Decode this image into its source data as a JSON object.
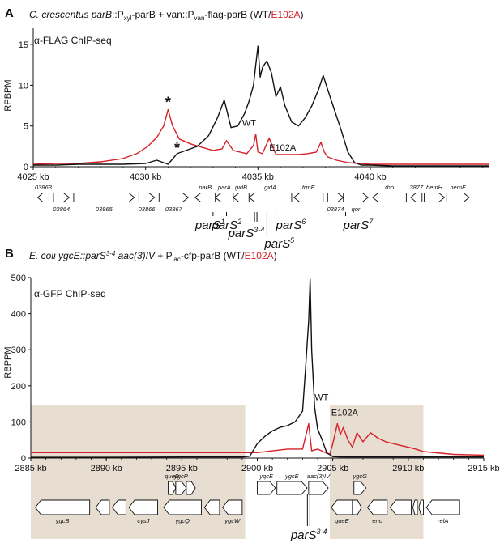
{
  "panel_labels": [
    "A",
    "B"
  ],
  "panelA": {
    "title_italic": "C. crescentus parB",
    "title_parts": [
      "::P",
      "xyl",
      "-parB + van::P",
      "van",
      "-flag-parB (WT/",
      "E102A",
      ")"
    ],
    "antibody": "α-FLAG ChIP-seq",
    "ylabel": "RPBPM",
    "yticks": [
      "0",
      "5",
      "10",
      "15"
    ],
    "xticks": [
      "4025 kb",
      "4030 kb",
      "4035 kb",
      "4040 kb"
    ],
    "series_labels": {
      "wt": "WT",
      "mut": "E102A"
    },
    "star": "*",
    "genes": [
      {
        "name": "03863",
        "start": 4025.2,
        "end": 4025.7,
        "strand": "-",
        "label": "top"
      },
      {
        "name": "03864",
        "start": 4025.9,
        "end": 4026.6,
        "strand": "+",
        "label": "bottom"
      },
      {
        "name": "03865",
        "start": 4026.8,
        "end": 4029.5,
        "strand": "+",
        "label": "bottom"
      },
      {
        "name": "03866",
        "start": 4029.7,
        "end": 4030.4,
        "strand": "+",
        "label": "bottom"
      },
      {
        "name": "03867",
        "start": 4030.6,
        "end": 4031.9,
        "strand": "+",
        "label": "bottom"
      },
      {
        "name": "parB",
        "start": 4032.2,
        "end": 4033.1,
        "strand": "-",
        "label": "top"
      },
      {
        "name": "parA",
        "start": 4033.1,
        "end": 4033.9,
        "strand": "-",
        "label": "top"
      },
      {
        "name": "gidB",
        "start": 4033.9,
        "end": 4034.6,
        "strand": "-",
        "label": "top"
      },
      {
        "name": "gidA",
        "start": 4034.6,
        "end": 4036.5,
        "strand": "-",
        "label": "top"
      },
      {
        "name": "trmE",
        "start": 4036.6,
        "end": 4037.9,
        "strand": "-",
        "label": "top"
      },
      {
        "name": "03874",
        "start": 4038.1,
        "end": 4038.8,
        "strand": "+",
        "label": "bottom"
      },
      {
        "name": "qor",
        "start": 4038.8,
        "end": 4039.9,
        "strand": "+",
        "label": "bottom"
      },
      {
        "name": "rho",
        "start": 4040.1,
        "end": 4041.6,
        "strand": "-",
        "label": "top"
      },
      {
        "name": "3877",
        "start": 4041.8,
        "end": 4042.3,
        "strand": "-",
        "label": "top"
      },
      {
        "name": "hemH",
        "start": 4042.4,
        "end": 4043.3,
        "strand": "+",
        "label": "top"
      },
      {
        "name": "hemE",
        "start": 4043.4,
        "end": 4044.4,
        "strand": "+",
        "label": "top"
      }
    ],
    "sites": [
      {
        "name": "parS",
        "sup": "1",
        "pos": 4033.0
      },
      {
        "name": "parS",
        "sup": "2",
        "pos": 4033.6
      },
      {
        "name": "parS",
        "sup": "3-4",
        "pos": 4034.9
      },
      {
        "name": "parS",
        "sup": "5",
        "pos": 4035.4
      },
      {
        "name": "parS",
        "sup": "6",
        "pos": 4035.8
      },
      {
        "name": "parS",
        "sup": "7",
        "pos": 4038.9
      }
    ]
  },
  "panelB": {
    "title_italic": "E. coli ygcE::parS",
    "title_parts": [
      "3-4",
      " aac(3)IV",
      " + P",
      "lac",
      "-cfp-parB (WT/",
      "E102A",
      ")"
    ],
    "antibody": "α-GFP ChIP-seq",
    "ylabel": "RBPPM",
    "yticks": [
      "0",
      "100",
      "200",
      "300",
      "400",
      "500"
    ],
    "xticks": [
      "2885 kb",
      "2890 kb",
      "2895 kb",
      "2900 kb",
      "2905 kb",
      "2910 kb",
      "2915 kb"
    ],
    "series_labels": {
      "wt": "WT",
      "mut": "E102A"
    },
    "shaded_regions": [
      [
        2885,
        2899.2
      ],
      [
        2904.8,
        2911
      ]
    ],
    "genes": [
      {
        "name": "ygcB",
        "start": 2885.3,
        "end": 2888.9,
        "strand": "-",
        "row": 2
      },
      {
        "name": "",
        "start": 2889.3,
        "end": 2890.2,
        "strand": "-",
        "row": 2
      },
      {
        "name": "",
        "start": 2890.4,
        "end": 2891.3,
        "strand": "-",
        "row": 2
      },
      {
        "name": "cysJ",
        "start": 2891.5,
        "end": 2893.4,
        "strand": "-",
        "row": 2
      },
      {
        "name": "queD",
        "start": 2894.1,
        "end": 2894.6,
        "strand": "+",
        "row": 1
      },
      {
        "name": "ygcP",
        "start": 2894.6,
        "end": 2895.3,
        "strand": "+",
        "row": 1
      },
      {
        "name": "",
        "start": 2895.3,
        "end": 2895.9,
        "strand": "+",
        "row": 1
      },
      {
        "name": "ygcQ",
        "start": 2893.8,
        "end": 2896.3,
        "strand": "-",
        "row": 2
      },
      {
        "name": "",
        "start": 2896.5,
        "end": 2897.5,
        "strand": "-",
        "row": 2
      },
      {
        "name": "ygcW",
        "start": 2897.7,
        "end": 2899.0,
        "strand": "-",
        "row": 2
      },
      {
        "name": "yqcE",
        "start": 2900.0,
        "end": 2901.2,
        "strand": "+",
        "row": 1
      },
      {
        "name": "ygcE",
        "start": 2901.3,
        "end": 2903.3,
        "strand": "+",
        "row": 1
      },
      {
        "name": "aac(3)IV",
        "start": 2903.4,
        "end": 2904.7,
        "strand": "+",
        "row": 1
      },
      {
        "name": "ygcG",
        "start": 2906.4,
        "end": 2907.2,
        "strand": "+",
        "row": 1
      },
      {
        "name": "queE",
        "start": 2904.9,
        "end": 2906.3,
        "strand": "-",
        "row": 2
      },
      {
        "name": "",
        "start": 2906.3,
        "end": 2906.9,
        "strand": "+",
        "row": 2
      },
      {
        "name": "eno",
        "start": 2907.3,
        "end": 2908.6,
        "strand": "-",
        "row": 2
      },
      {
        "name": "",
        "start": 2908.8,
        "end": 2910.2,
        "strand": "-",
        "row": 2
      },
      {
        "name": "",
        "start": 2910.3,
        "end": 2910.6,
        "strand": "-",
        "row": 2
      },
      {
        "name": "",
        "start": 2910.7,
        "end": 2911.0,
        "strand": "-",
        "row": 2
      },
      {
        "name": "relA",
        "start": 2911.2,
        "end": 2913.4,
        "strand": "-",
        "row": 2
      }
    ],
    "site": {
      "name": "parS",
      "sup": "3-4",
      "pos": 2903.4
    }
  },
  "colors": {
    "wt": "#111111",
    "mut": "#d42027",
    "shade": "#e7ded1",
    "axis": "#111111"
  },
  "chart_data": [
    {
      "type": "line",
      "title": "C. crescentus parB::Pxyl-parB + van::Pvan-flag-parB (WT/E102A)",
      "ylabel": "RPBPM",
      "xlabel": "",
      "xlim": [
        4025,
        4045.3
      ],
      "ylim": [
        0,
        17
      ],
      "grid": false,
      "series": [
        {
          "name": "WT",
          "x": [
            4025,
            4026,
            4027,
            4028,
            4029,
            4030,
            4030.5,
            4031,
            4031.4,
            4031.8,
            4032.3,
            4032.8,
            4033.2,
            4033.5,
            4033.8,
            4034.1,
            4034.4,
            4034.6,
            4034.8,
            4034.9,
            4035.0,
            4035.1,
            4035.2,
            4035.4,
            4035.6,
            4035.8,
            4036.0,
            4036.2,
            4036.5,
            4036.8,
            4037.1,
            4037.4,
            4037.7,
            4037.9,
            4038.1,
            4038.4,
            4038.7,
            4039.0,
            4039.3,
            4039.6,
            4040,
            4041,
            4042,
            4043,
            4044,
            4045.3
          ],
          "y": [
            0.2,
            0.2,
            0.3,
            0.3,
            0.3,
            0.4,
            0.8,
            0.3,
            1.6,
            2.0,
            2.5,
            3.8,
            6.0,
            8.2,
            4.8,
            5.0,
            6.5,
            8.0,
            10.0,
            12.5,
            14.8,
            11.0,
            12.2,
            13.0,
            11.5,
            8.6,
            9.8,
            7.5,
            5.5,
            5.0,
            6.0,
            7.5,
            9.5,
            11.2,
            9.5,
            7.0,
            4.5,
            1.8,
            0.5,
            0.2,
            0.2,
            0.1,
            0.1,
            0.1,
            0.1,
            0.1
          ]
        },
        {
          "name": "E102A",
          "x": [
            4025,
            4026,
            4027,
            4028,
            4029,
            4029.6,
            4030.1,
            4030.5,
            4030.8,
            4031.0,
            4031.2,
            4031.5,
            4032,
            4032.5,
            4033,
            4033.4,
            4033.6,
            4033.9,
            4034.2,
            4034.5,
            4034.8,
            4034.9,
            4035.0,
            4035.2,
            4035.5,
            4035.8,
            4036.1,
            4036.4,
            4036.8,
            4037.2,
            4037.6,
            4037.8,
            4037.95,
            4038.1,
            4038.5,
            4039,
            4039.5,
            4040,
            4041,
            4042,
            4043,
            4044,
            4045.3
          ],
          "y": [
            0.3,
            0.4,
            0.4,
            0.6,
            1.0,
            1.6,
            2.5,
            3.6,
            5.0,
            7.0,
            5.0,
            3.4,
            2.8,
            2.4,
            2.0,
            2.2,
            3.2,
            2.0,
            1.8,
            1.6,
            2.6,
            4.0,
            1.8,
            1.6,
            3.5,
            1.5,
            1.5,
            1.5,
            1.5,
            1.6,
            1.8,
            3.0,
            1.8,
            1.2,
            0.8,
            0.5,
            0.4,
            0.3,
            0.3,
            0.3,
            0.3,
            0.3,
            0.3
          ]
        }
      ]
    },
    {
      "type": "line",
      "title": "E. coli ygcE::parS3-4 aac(3)IV + Plac-cfp-parB (WT/E102A)",
      "ylabel": "RBPPM",
      "xlabel": "",
      "xlim": [
        2885,
        2915
      ],
      "ylim": [
        0,
        500
      ],
      "grid": false,
      "series": [
        {
          "name": "WT",
          "x": [
            2885,
            2890,
            2895,
            2898,
            2899,
            2899.5,
            2900,
            2900.5,
            2901,
            2901.5,
            2902,
            2902.5,
            2903,
            2903.2,
            2903.4,
            2903.5,
            2903.6,
            2903.8,
            2904,
            2904.3,
            2904.6,
            2905,
            2905.5,
            2906,
            2910,
            2915
          ],
          "y": [
            2,
            2,
            3,
            3,
            3,
            5,
            40,
            60,
            75,
            85,
            90,
            100,
            130,
            250,
            380,
            495,
            300,
            140,
            80,
            50,
            15,
            4,
            3,
            3,
            3,
            3
          ]
        },
        {
          "name": "E102A",
          "x": [
            2885,
            2890,
            2895,
            2898,
            2899,
            2900,
            2901,
            2902,
            2903,
            2903.4,
            2903.6,
            2904,
            2904.5,
            2904.8,
            2905.0,
            2905.3,
            2905.5,
            2905.7,
            2906,
            2906.3,
            2906.6,
            2907,
            2907.5,
            2908,
            2908.5,
            2909,
            2909.5,
            2910,
            2910.5,
            2911,
            2913,
            2915
          ],
          "y": [
            15,
            15,
            15,
            15,
            15,
            15,
            20,
            25,
            25,
            95,
            20,
            25,
            15,
            10,
            40,
            95,
            65,
            85,
            50,
            30,
            70,
            45,
            70,
            55,
            45,
            40,
            35,
            30,
            25,
            18,
            10,
            8
          ]
        }
      ]
    }
  ]
}
